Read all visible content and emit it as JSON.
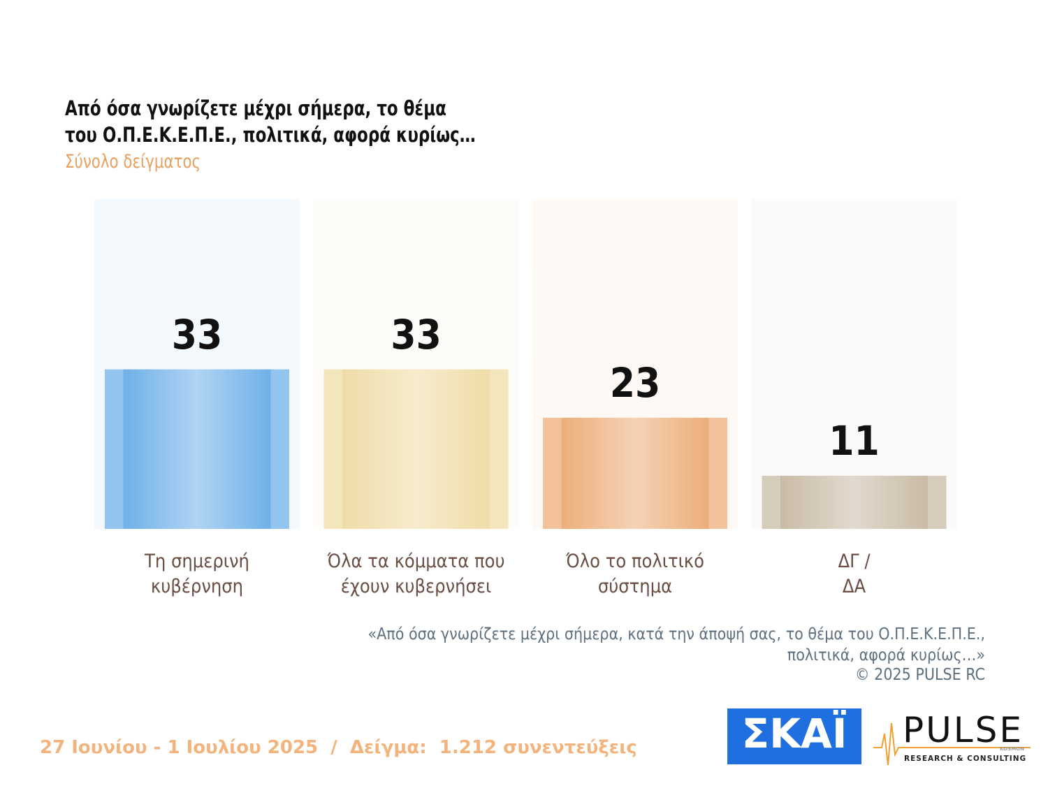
{
  "chart_data": {
    "type": "bar",
    "title": "Από όσα γνωρίζετε μέχρι σήμερα, το θέμα\nτου  Ο.Π.Ε.Κ.Ε.Π.Ε.,  πολιτικά, αφορά κυρίως…",
    "subtitle": "Σύνολο δείγματος",
    "categories": [
      "Τη σημερινή\nκυβέρνηση",
      "Όλα τα κόμματα που\nέχουν κυβερνήσει",
      "Όλο το πολιτικό\nσύστημα",
      "ΔΓ /\nΔΑ"
    ],
    "values": [
      33,
      33,
      23,
      11
    ],
    "colors": [
      "#6fb0e8",
      "#efdca6",
      "#ecae7a",
      "#c9bba6"
    ],
    "note": "«Από όσα γνωρίζετε μέχρι σήμερα, κατά την άποψή σας, το θέμα του Ο.Π.Ε.Κ.Ε.Π.Ε.,\nπολιτικά, αφορά κυρίως…»",
    "source": "©  2025  PULSE RC"
  },
  "footer": "27 Ιουνίου - 1 Ιουλίου 2025  /  Δείγμα:  1.212 συνεντεύξεις",
  "logos": {
    "skai": "ΣΚΑΪ",
    "pulse": "PULSE",
    "pulse_sub": "RESEARCH & CONSULTING",
    "kosmon": "KOSMON"
  }
}
